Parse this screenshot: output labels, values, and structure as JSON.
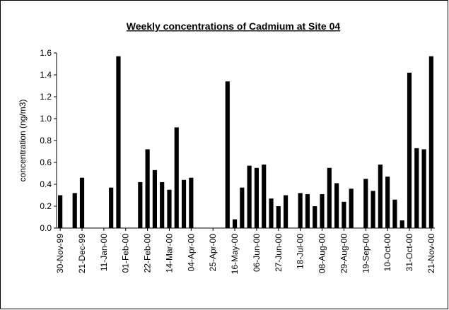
{
  "chart_data": {
    "type": "bar",
    "title": "Weekly concentrations of Cadmium at Site 04",
    "y_label": "concentration (ng/m3)",
    "categories": [
      "30-Nov-99",
      null,
      null,
      "21-Dec-99",
      null,
      null,
      "11-Jan-00",
      null,
      null,
      "01-Feb-00",
      null,
      null,
      "22-Feb-00",
      null,
      null,
      "14-Mar-00",
      null,
      null,
      "04-Apr-00",
      null,
      null,
      "25-Apr-00",
      null,
      null,
      "16-May-00",
      null,
      null,
      "06-Jun-00",
      null,
      null,
      "27-Jun-00",
      null,
      null,
      "18-Jul-00",
      null,
      null,
      "08-Aug-00",
      null,
      null,
      "29-Aug-00",
      null,
      null,
      "19-Sep-00",
      null,
      null,
      "10-Oct-00",
      null,
      null,
      "31-Oct-00",
      null,
      null,
      "21-Nov-00"
    ],
    "values": [
      0.3,
      null,
      0.32,
      0.46,
      null,
      null,
      null,
      0.37,
      1.57,
      null,
      null,
      0.42,
      0.72,
      0.53,
      0.42,
      0.35,
      0.92,
      0.44,
      0.46,
      null,
      null,
      null,
      null,
      1.34,
      0.08,
      0.37,
      0.57,
      0.55,
      0.58,
      0.27,
      0.2,
      0.3,
      null,
      0.32,
      0.31,
      0.2,
      0.31,
      0.55,
      0.41,
      0.24,
      0.36,
      null,
      0.45,
      0.34,
      0.58,
      0.47,
      0.26,
      0.07,
      1.42,
      0.73,
      0.72,
      1.57
    ],
    "color": "#000000",
    "ylim": [
      0,
      1.6
    ],
    "yticks": [
      {
        "value": 0,
        "label": "0.0"
      },
      0.2,
      0.4,
      0.6,
      0.8,
      {
        "value": 1,
        "label": "1.0"
      },
      1.2,
      1.4,
      1.6
    ],
    "grid": false
  }
}
